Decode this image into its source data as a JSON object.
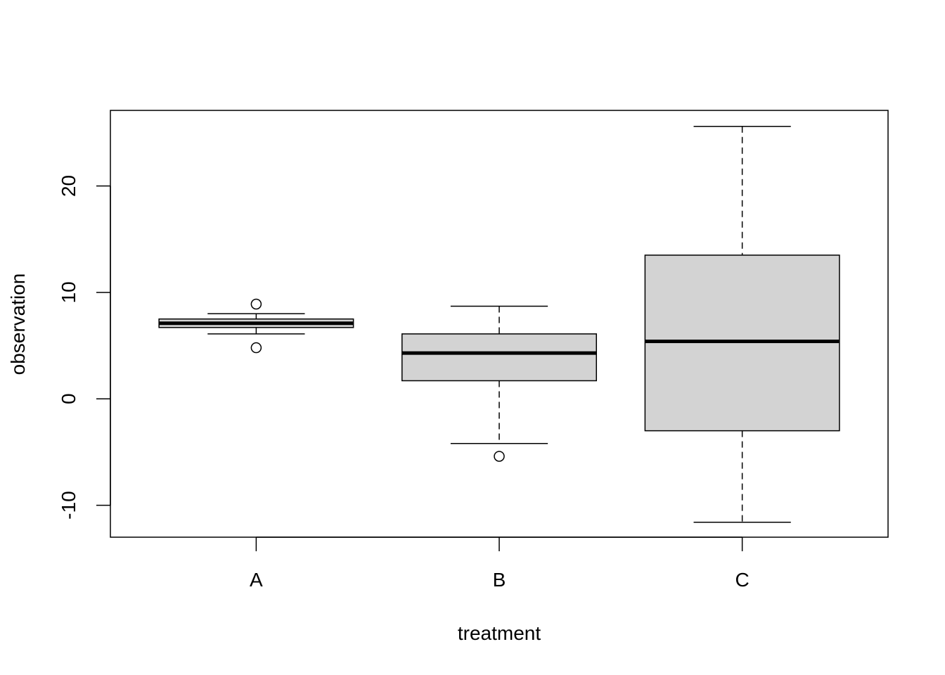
{
  "chart_data": {
    "type": "box",
    "title": "",
    "xlabel": "treatment",
    "ylabel": "observation",
    "ylim": [
      -13,
      27.1
    ],
    "yticks": [
      -10,
      0,
      10,
      20
    ],
    "ytick_labels": [
      "-10",
      "0",
      "10",
      "20"
    ],
    "grid": false,
    "categories": [
      "A",
      "B",
      "C"
    ],
    "boxes": [
      {
        "name": "A",
        "whisker_low": 6.1,
        "q1": 6.7,
        "median": 7.1,
        "q3": 7.5,
        "whisker_high": 8.0,
        "outliers": [
          8.9,
          4.8
        ]
      },
      {
        "name": "B",
        "whisker_low": -4.2,
        "q1": 1.7,
        "median": 4.3,
        "q3": 6.1,
        "whisker_high": 8.7,
        "outliers": [
          -5.4
        ]
      },
      {
        "name": "C",
        "whisker_low": -11.6,
        "q1": -3.0,
        "median": 5.4,
        "q3": 13.5,
        "whisker_high": 25.6,
        "outliers": []
      }
    ],
    "box_fill": "#d3d3d3",
    "line_color": "#000000"
  }
}
